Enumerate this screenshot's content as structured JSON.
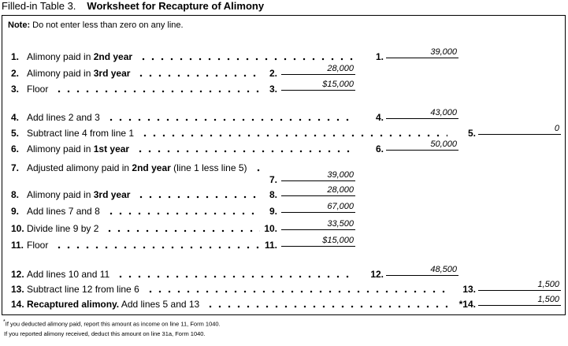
{
  "title": {
    "prefix": "Filled-in Table 3.",
    "text": "Worksheet for Recapture of Alimony"
  },
  "note": {
    "label": "Note:",
    "text": "Do not enter less than zero on any line."
  },
  "lines": [
    {
      "number": "1.",
      "label": [
        {
          "text": "Alimony paid in "
        },
        {
          "text": "2nd year",
          "bold": true
        }
      ],
      "field": "1.",
      "value": "39,000"
    },
    {
      "number": "2.",
      "label": [
        {
          "text": "Alimony paid in "
        },
        {
          "text": "3rd year",
          "bold": true
        }
      ],
      "field": "2.",
      "value": "28,000"
    },
    {
      "number": "3.",
      "label": [
        {
          "text": "Floor"
        }
      ],
      "field": "3.",
      "value": "$15,000"
    },
    {
      "number": "4.",
      "label": [
        {
          "text": "Add lines 2 and 3"
        }
      ],
      "field": "4.",
      "value": "43,000"
    },
    {
      "number": "5.",
      "label": [
        {
          "text": "Subtract line 4 from line 1"
        }
      ],
      "field": "5.",
      "value": "0"
    },
    {
      "number": "6.",
      "label": [
        {
          "text": "Alimony paid in "
        },
        {
          "text": "1st year",
          "bold": true
        }
      ],
      "field": "6.",
      "value": "50,000"
    },
    {
      "number": "7.",
      "label": [
        {
          "text": "Adjusted alimony paid in "
        },
        {
          "text": "2nd year",
          "bold": true
        },
        {
          "text": " (line 1 less line 5)"
        }
      ],
      "field": "7.",
      "value": "39,000"
    },
    {
      "number": "8.",
      "label": [
        {
          "text": "Alimony paid in "
        },
        {
          "text": "3rd year",
          "bold": true
        }
      ],
      "field": "8.",
      "value": "28,000"
    },
    {
      "number": "9.",
      "label": [
        {
          "text": "Add lines 7 and 8"
        }
      ],
      "field": "9.",
      "value": "67,000"
    },
    {
      "number": "10.",
      "label": [
        {
          "text": "Divide line 9 by 2"
        }
      ],
      "field": "10.",
      "value": "33,500"
    },
    {
      "number": "11.",
      "label": [
        {
          "text": "Floor"
        }
      ],
      "field": "11.",
      "value": "$15,000"
    },
    {
      "number": "12.",
      "label": [
        {
          "text": "Add lines 10 and 11"
        }
      ],
      "field": "12.",
      "value": "48,500"
    },
    {
      "number": "13.",
      "label": [
        {
          "text": "Subtract line 12 from line 6"
        }
      ],
      "field": "13.",
      "value": "1,500"
    },
    {
      "number": "14.",
      "label": [
        {
          "text": "Recaptured alimony.",
          "bold": true
        },
        {
          "text": " Add lines 5 and 13"
        }
      ],
      "field": "*14.",
      "value": "1,500"
    }
  ],
  "footnotes": {
    "marker": "*",
    "lines": [
      "If you deducted alimony paid, report this amount as income on line 11, Form 1040.",
      "If you reported alimony received, deduct this amount on line 31a, Form 1040."
    ]
  }
}
